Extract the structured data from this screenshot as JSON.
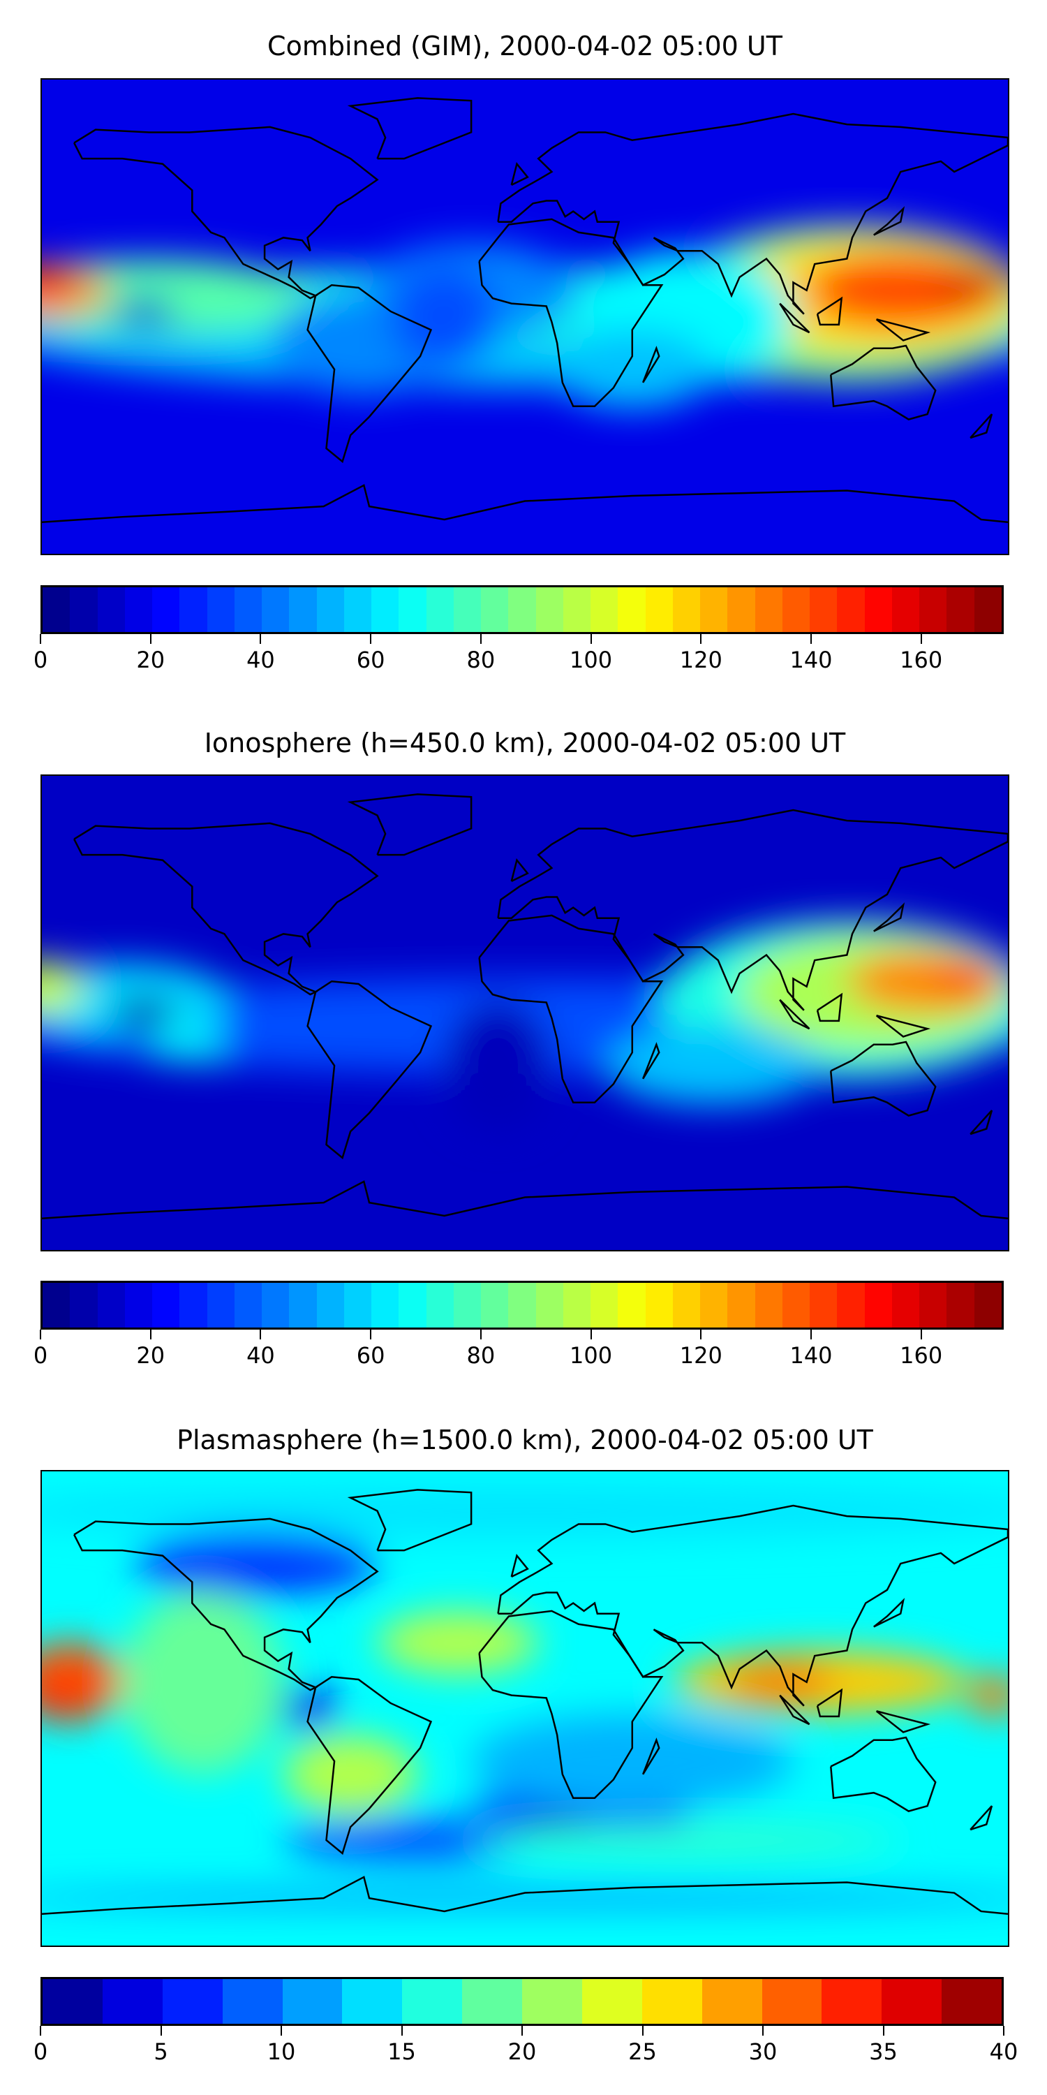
{
  "chart_data": [
    {
      "type": "heatmap",
      "title": "Combined (GIM), 2000-04-02 05:00 UT",
      "colormap": "jet",
      "colorbar": {
        "min": 0,
        "max": 175,
        "step": 5,
        "ticks": [
          0,
          20,
          40,
          60,
          80,
          100,
          120,
          140,
          160
        ],
        "tick_labels": [
          "0",
          "20",
          "40",
          "60",
          "80",
          "100",
          "120",
          "140",
          "160"
        ]
      },
      "projection": "plate-carree",
      "lon_range": [
        -180,
        180
      ],
      "lat_range": [
        -90,
        90
      ]
    },
    {
      "type": "heatmap",
      "title": "Ionosphere  (h=450.0 km), 2000-04-02 05:00 UT",
      "colormap": "jet",
      "colorbar": {
        "min": 0,
        "max": 175,
        "step": 5,
        "ticks": [
          0,
          20,
          40,
          60,
          80,
          100,
          120,
          140,
          160
        ],
        "tick_labels": [
          "0",
          "20",
          "40",
          "60",
          "80",
          "100",
          "120",
          "140",
          "160"
        ]
      },
      "projection": "plate-carree",
      "lon_range": [
        -180,
        180
      ],
      "lat_range": [
        -90,
        90
      ]
    },
    {
      "type": "heatmap",
      "title": "Plasmasphere (h=1500.0 km), 2000-04-02 05:00 UT",
      "colormap": "jet",
      "colorbar": {
        "min": 0,
        "max": 40,
        "step": 2.5,
        "ticks": [
          0,
          5,
          10,
          15,
          20,
          25,
          30,
          35,
          40
        ],
        "tick_labels": [
          "0",
          "5",
          "10",
          "15",
          "20",
          "25",
          "30",
          "35",
          "40"
        ]
      },
      "projection": "plate-carree",
      "lon_range": [
        -180,
        180
      ],
      "lat_range": [
        -90,
        90
      ]
    }
  ]
}
